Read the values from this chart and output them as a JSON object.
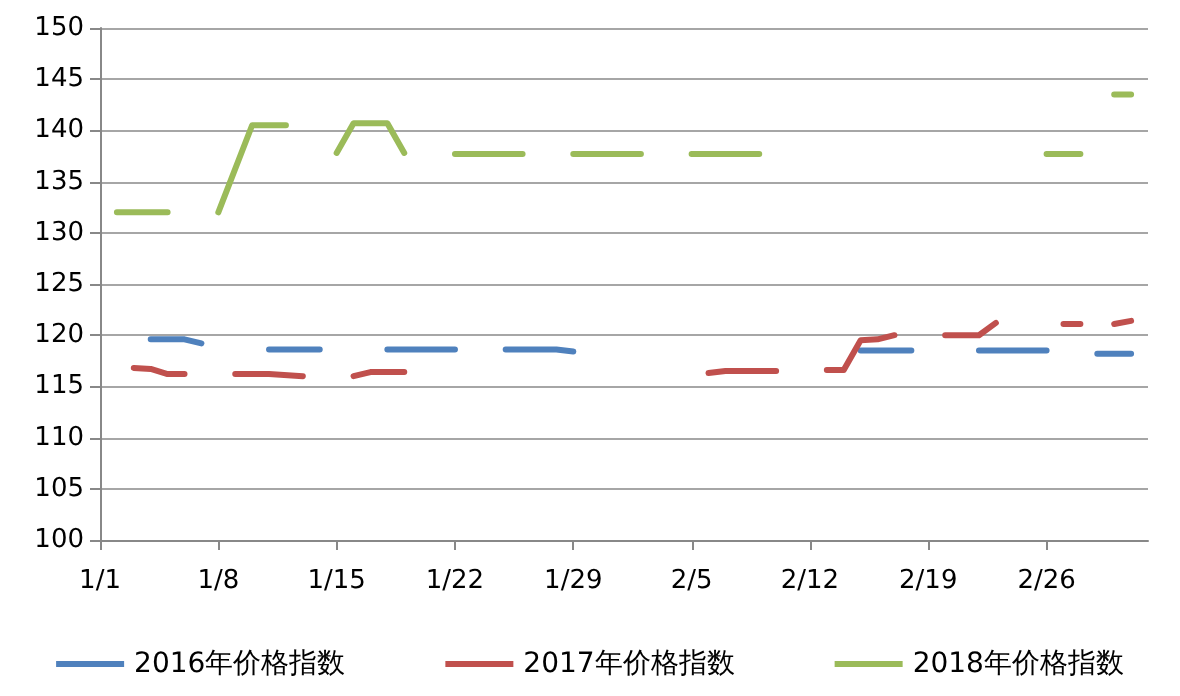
{
  "chart_data": {
    "type": "line",
    "line_style": "solid",
    "marker": "none",
    "grid": "y",
    "legend": "bottom",
    "xlim": [
      "--01-01",
      "--03-04"
    ],
    "xticks": [
      {
        "value": "--01-01",
        "label": "1/1"
      },
      {
        "value": "--01-08",
        "label": "1/8"
      },
      {
        "value": "--01-15",
        "label": "1/15"
      },
      {
        "value": "--01-22",
        "label": "1/22"
      },
      {
        "value": "--01-29",
        "label": "1/29"
      },
      {
        "value": "--02-05",
        "label": "2/5"
      },
      {
        "value": "--02-12",
        "label": "2/12"
      },
      {
        "value": "--02-19",
        "label": "2/19"
      },
      {
        "value": "--02-26",
        "label": "2/26"
      }
    ],
    "ylim": [
      100,
      150
    ],
    "yticks": [
      100,
      105,
      110,
      115,
      120,
      125,
      130,
      135,
      140,
      145,
      150
    ],
    "series": [
      {
        "name": "2016年价格指数",
        "color": "#4f81bd",
        "x": [
          "--01-04",
          "--01-06",
          "--01-07",
          "--01-08",
          "--01-11",
          "--01-14",
          "--01-15",
          "--01-18",
          "--01-22",
          "--01-23",
          "--01-25",
          "--01-28",
          "--01-29",
          "--01-30",
          "--02-15",
          "--02-18",
          "--02-19",
          "--02-22",
          "--02-26",
          "--02-27",
          "--03-01",
          "--03-03"
        ],
        "values": [
          119.6,
          119.6,
          119.2,
          null,
          118.6,
          118.6,
          null,
          118.6,
          118.6,
          null,
          118.6,
          118.6,
          118.4,
          null,
          118.5,
          118.5,
          null,
          118.5,
          118.5,
          null,
          118.2,
          118.2
        ]
      },
      {
        "name": "2017年价格指数",
        "color": "#c0504d",
        "x": [
          "--01-03",
          "--01-04",
          "--01-05",
          "--01-06",
          "--01-07",
          "--01-09",
          "--01-11",
          "--01-13",
          "--01-14",
          "--01-16",
          "--01-17",
          "--01-19",
          "--01-20",
          "--02-06",
          "--02-07",
          "--02-10",
          "--02-11",
          "--02-13",
          "--02-14",
          "--02-15",
          "--02-16",
          "--02-17",
          "--02-18",
          "--02-20",
          "--02-22",
          "--02-23",
          "--02-24",
          "--02-27",
          "--02-28",
          "--03-01",
          "--03-02",
          "--03-03"
        ],
        "values": [
          116.8,
          116.7,
          116.2,
          116.2,
          null,
          116.2,
          116.2,
          116.0,
          null,
          116.0,
          116.4,
          116.4,
          null,
          116.3,
          116.5,
          116.5,
          null,
          116.6,
          116.6,
          119.5,
          119.6,
          120.0,
          null,
          120.0,
          120.0,
          121.2,
          null,
          121.1,
          121.1,
          null,
          121.1,
          121.4
        ]
      },
      {
        "name": "2018年价格指数",
        "color": "#9bbb59",
        "x": [
          "--01-02",
          "--01-05",
          "--01-06",
          "--01-08",
          "--01-10",
          "--01-12",
          "--01-13",
          "--01-15",
          "--01-16",
          "--01-18",
          "--01-19",
          "--01-20",
          "--01-22",
          "--01-26",
          "--01-27",
          "--01-29",
          "--02-02",
          "--02-03",
          "--02-05",
          "--02-09",
          "--02-10",
          "--02-26",
          "--02-28",
          "--03-01",
          "--03-02",
          "--03-03"
        ],
        "values": [
          132,
          132,
          null,
          132,
          140.5,
          140.5,
          null,
          137.8,
          140.7,
          140.7,
          137.8,
          null,
          137.7,
          137.7,
          null,
          137.7,
          137.7,
          null,
          137.7,
          137.7,
          null,
          137.7,
          137.7,
          null,
          143.5,
          143.5
        ]
      }
    ]
  }
}
